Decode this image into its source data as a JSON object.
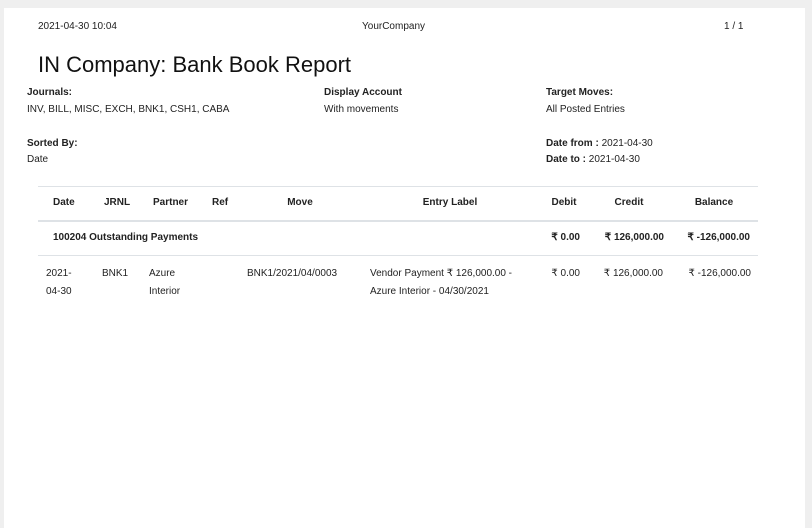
{
  "header": {
    "datetime": "2021-04-30 10:04",
    "company": "YourCompany",
    "page": "1 / 1"
  },
  "title": "IN Company: Bank Book Report",
  "filters": {
    "journals_label": "Journals:",
    "journals_value": "INV, BILL, MISC, EXCH, BNK1, CSH1, CABA",
    "display_account_label": "Display Account",
    "display_account_value": "With movements",
    "target_moves_label": "Target Moves:",
    "target_moves_value": "All Posted Entries",
    "sorted_by_label": "Sorted By:",
    "sorted_by_value": "Date",
    "date_from_label": "Date from :",
    "date_from_value": "2021-04-30",
    "date_to_label": "Date to :",
    "date_to_value": "2021-04-30"
  },
  "table": {
    "columns": [
      "Date",
      "JRNL",
      "Partner",
      "Ref",
      "Move",
      "Entry Label",
      "Debit",
      "Credit",
      "Balance"
    ],
    "account_row": {
      "name": "100204 Outstanding Payments",
      "debit": "₹ 0.00",
      "credit": "₹ 126,000.00",
      "balance": "₹ -126,000.00"
    },
    "rows": [
      {
        "date_1": "2021-",
        "date_2": "04-30",
        "jrnl": "BNK1",
        "partner_1": "Azure",
        "partner_2": "Interior",
        "ref": "",
        "move": "BNK1/2021/04/0003",
        "label_1": "Vendor Payment ₹ 126,000.00 -",
        "label_2": "Azure Interior - 04/30/2021",
        "debit": "₹ 0.00",
        "credit": "₹ 126,000.00",
        "balance": "₹ -126,000.00"
      }
    ]
  }
}
